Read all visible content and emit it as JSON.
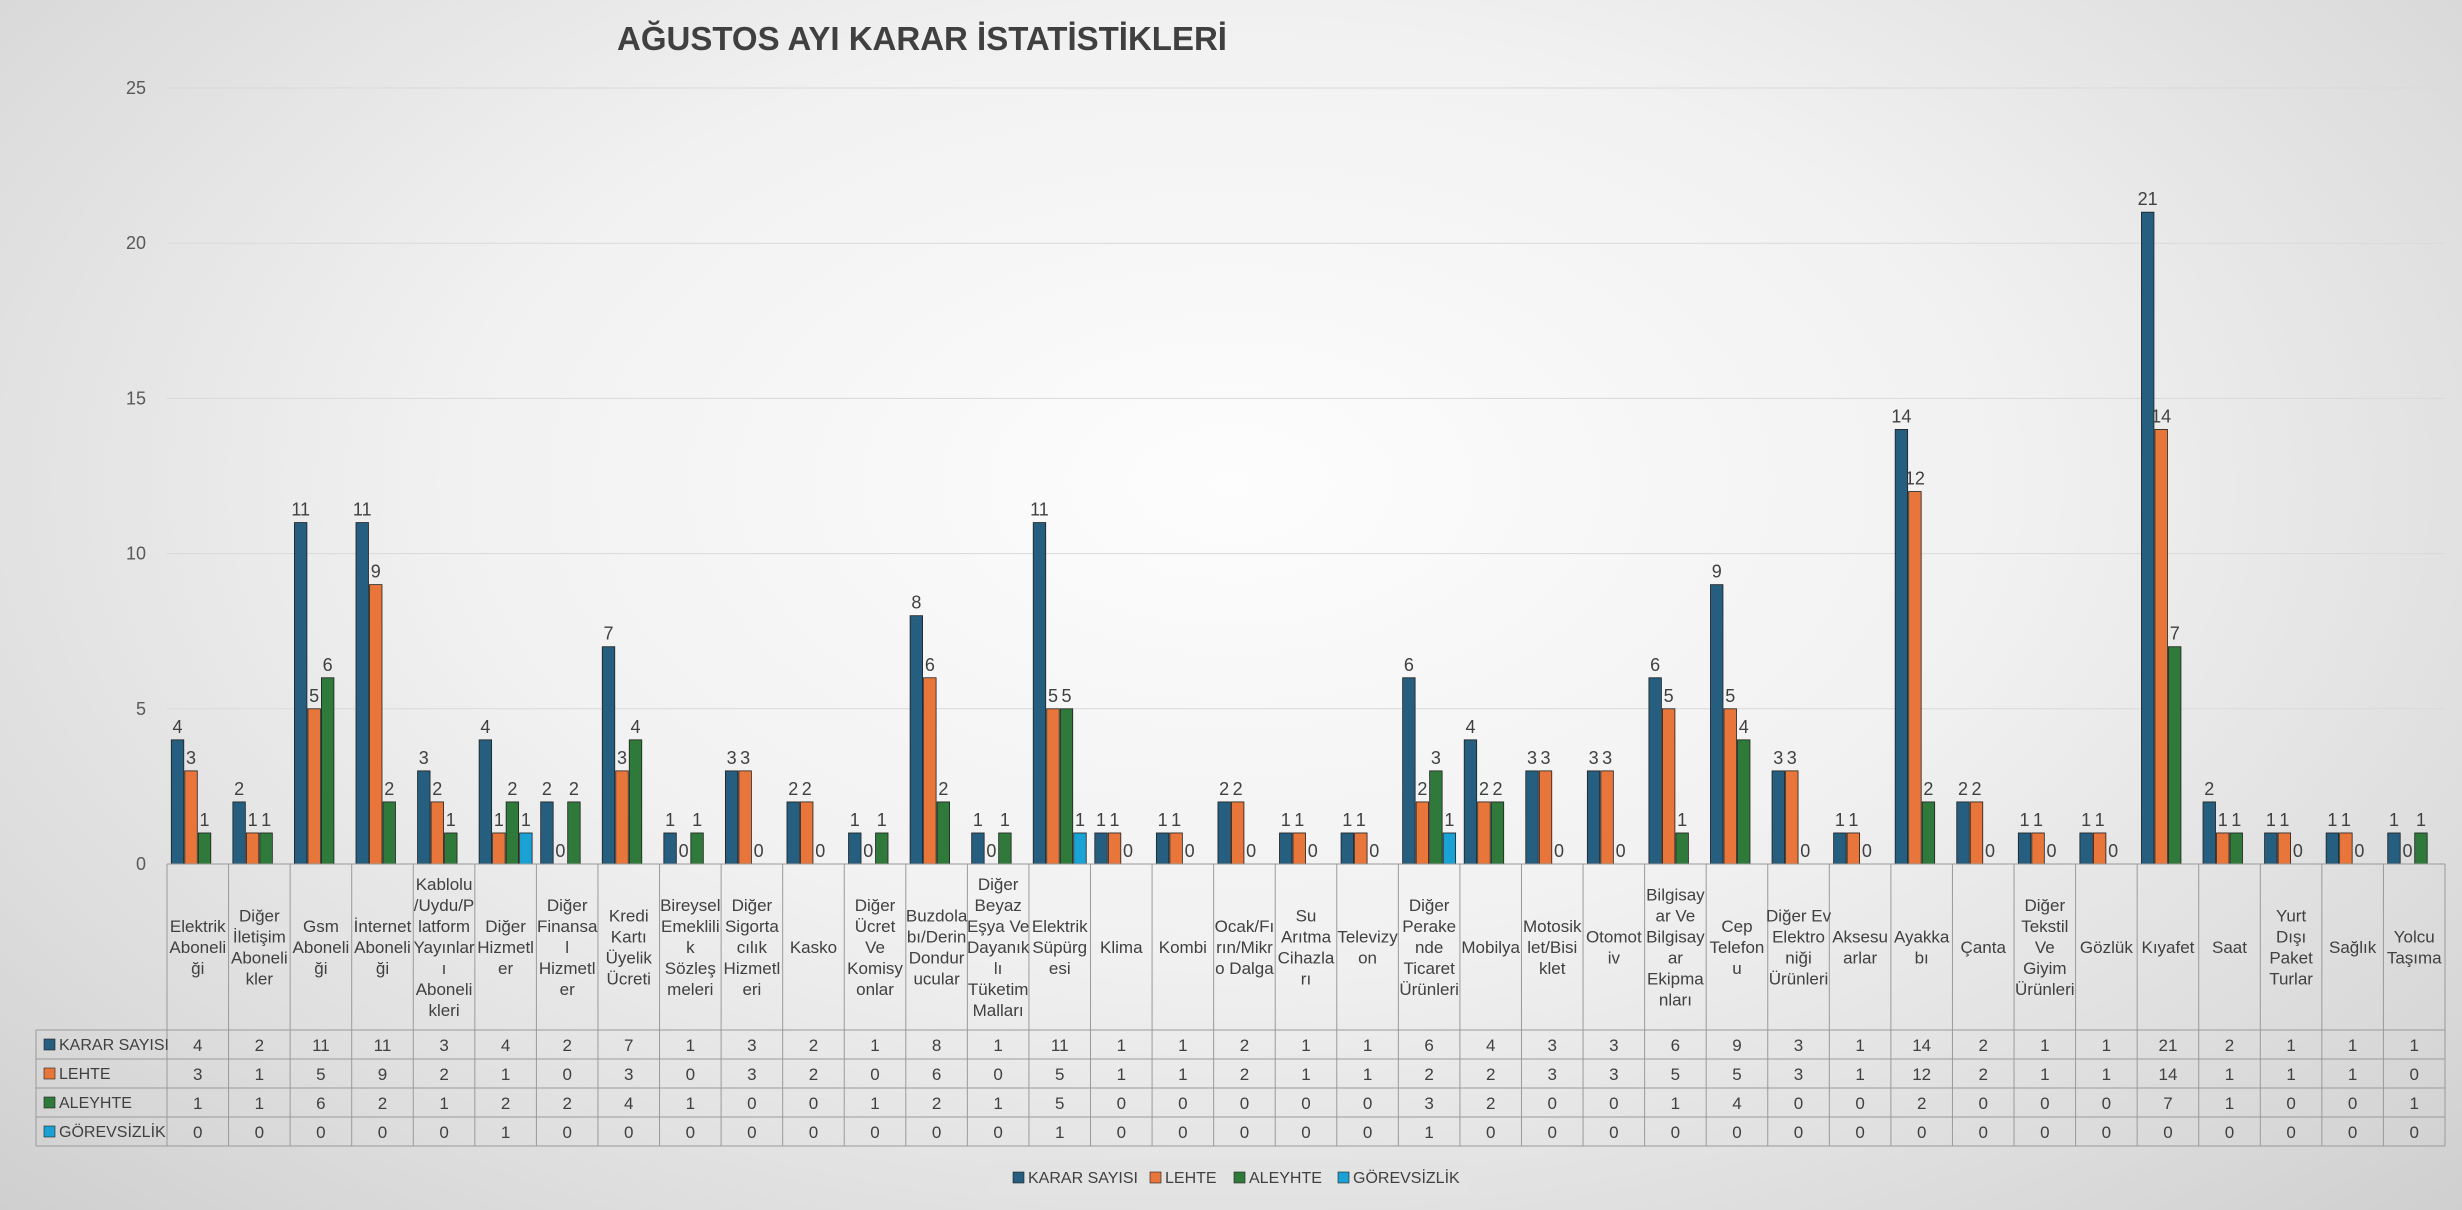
{
  "chart_data": {
    "type": "bar",
    "title": "AĞUSTOS AYI KARAR İSTATİSTİKLERİ",
    "ylim": [
      0,
      25
    ],
    "yticks": [
      "0",
      "5",
      "10",
      "15",
      "20",
      "25"
    ],
    "grid": true,
    "legend_position": "bottom",
    "categories": [
      [
        "Elektrik",
        "Aboneli",
        "ği"
      ],
      [
        "Diğer",
        "İletişim",
        "Aboneli",
        "kler"
      ],
      [
        "Gsm",
        "Aboneli",
        "ği"
      ],
      [
        "İnternet",
        "Aboneli",
        "ği"
      ],
      [
        "Kablolu",
        "/Uydu/P",
        "latform",
        "Yayınlar",
        "ı",
        "Aboneli",
        "kleri"
      ],
      [
        "Diğer",
        "Hizmetl",
        "er"
      ],
      [
        "Diğer",
        "Finansa",
        "l",
        "Hizmetl",
        "er"
      ],
      [
        "Kredi",
        "Kartı",
        "Üyelik",
        "Ücreti"
      ],
      [
        "Bireysel",
        "Emeklili",
        "k",
        "Sözleş",
        "meleri"
      ],
      [
        "Diğer",
        "Sigorta",
        "cılık",
        "Hizmetl",
        "eri"
      ],
      [
        "Kasko"
      ],
      [
        "Diğer",
        "Ücret",
        "Ve",
        "Komisy",
        "onlar"
      ],
      [
        "Buzdola",
        "bı/Derin",
        "Dondur",
        "ucular"
      ],
      [
        "Diğer",
        "Beyaz",
        "Eşya Ve",
        "Dayanık",
        "lı",
        "Tüketim",
        "Malları"
      ],
      [
        "Elektrik",
        "Süpürg",
        "esi"
      ],
      [
        "Klima"
      ],
      [
        "Kombi"
      ],
      [
        "Ocak/Fı",
        "rın/Mikr",
        "o Dalga"
      ],
      [
        "Su",
        "Arıtma",
        "Cihazla",
        "rı"
      ],
      [
        "Televizy",
        "on"
      ],
      [
        "Diğer",
        "Perake",
        "nde",
        "Ticaret",
        "Ürünleri"
      ],
      [
        "Mobilya"
      ],
      [
        "Motosik",
        "let/Bisi",
        "klet"
      ],
      [
        "Otomot",
        "iv"
      ],
      [
        "Bilgisay",
        "ar Ve",
        "Bilgisay",
        "ar",
        "Ekipma",
        "nları"
      ],
      [
        "Cep",
        "Telefon",
        "u"
      ],
      [
        "Diğer Ev",
        "Elektro",
        "niği",
        "Ürünleri"
      ],
      [
        "Aksesu",
        "arlar"
      ],
      [
        "Ayakka",
        "bı"
      ],
      [
        "Çanta"
      ],
      [
        "Diğer",
        "Tekstil",
        "Ve",
        "Giyim",
        "Ürünleri"
      ],
      [
        "Gözlük"
      ],
      [
        "Kıyafet"
      ],
      [
        "Saat"
      ],
      [
        "Yurt",
        "Dışı",
        "Paket",
        "Turlar"
      ],
      [
        "Sağlık"
      ],
      [
        "Yolcu",
        "Taşıma"
      ]
    ],
    "series": [
      {
        "name": "KARAR SAYISI",
        "color": "#255e7e",
        "values": [
          4,
          2,
          11,
          11,
          3,
          4,
          2,
          7,
          1,
          3,
          2,
          1,
          8,
          1,
          11,
          1,
          1,
          2,
          1,
          1,
          6,
          4,
          3,
          3,
          6,
          9,
          3,
          1,
          14,
          2,
          1,
          1,
          21,
          2,
          1,
          1,
          1
        ]
      },
      {
        "name": "LEHTE",
        "color": "#e8763a",
        "values": [
          3,
          1,
          5,
          9,
          2,
          1,
          0,
          3,
          0,
          3,
          2,
          0,
          6,
          0,
          5,
          1,
          1,
          2,
          1,
          1,
          2,
          2,
          3,
          3,
          5,
          5,
          3,
          1,
          12,
          2,
          1,
          1,
          14,
          1,
          1,
          1,
          0
        ]
      },
      {
        "name": "ALEYHTE",
        "color": "#2f7a3b",
        "values": [
          1,
          1,
          6,
          2,
          1,
          2,
          2,
          4,
          1,
          0,
          0,
          1,
          2,
          1,
          5,
          0,
          0,
          0,
          0,
          0,
          3,
          2,
          0,
          0,
          1,
          4,
          0,
          0,
          2,
          0,
          0,
          0,
          7,
          1,
          0,
          0,
          1
        ]
      },
      {
        "name": "GÖREVSİZLİK",
        "color": "#1aa2d4",
        "values": [
          0,
          0,
          0,
          0,
          0,
          1,
          0,
          0,
          0,
          0,
          0,
          0,
          0,
          0,
          1,
          0,
          0,
          0,
          0,
          0,
          1,
          0,
          0,
          0,
          0,
          0,
          0,
          0,
          0,
          0,
          0,
          0,
          0,
          0,
          0,
          0,
          0
        ]
      }
    ]
  }
}
